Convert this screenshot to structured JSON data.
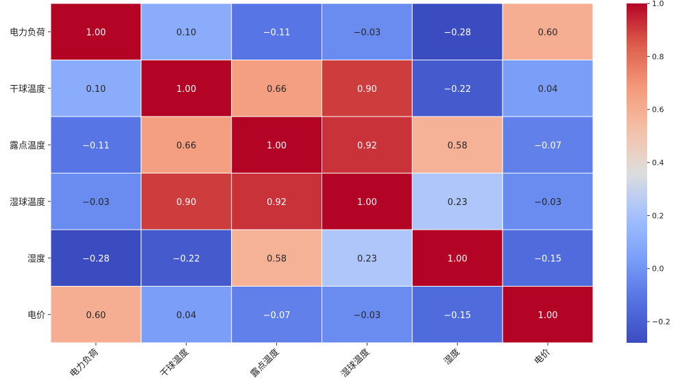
{
  "chart_data": {
    "type": "heatmap",
    "title": "",
    "labels": [
      "电力负荷",
      "干球温度",
      "露点温度",
      "湿球温度",
      "湿度",
      "电价"
    ],
    "matrix": [
      [
        1.0,
        0.1,
        -0.11,
        -0.03,
        -0.28,
        0.6
      ],
      [
        0.1,
        1.0,
        0.66,
        0.9,
        -0.22,
        0.04
      ],
      [
        -0.11,
        0.66,
        1.0,
        0.92,
        0.58,
        -0.07
      ],
      [
        -0.03,
        0.9,
        0.92,
        1.0,
        0.23,
        -0.03
      ],
      [
        -0.28,
        -0.22,
        0.58,
        0.23,
        1.0,
        -0.15
      ],
      [
        0.6,
        0.04,
        -0.07,
        -0.03,
        -0.15,
        1.0
      ]
    ],
    "colormap": "coolwarm",
    "vmin": -0.28,
    "vmax": 1.0,
    "annotation_format": "0.00",
    "colorbar": {
      "ticks": [
        1.0,
        0.8,
        0.6,
        0.4,
        0.2,
        0.0,
        -0.2
      ],
      "tick_labels": [
        "1.0",
        "0.8",
        "0.6",
        "0.4",
        "0.2",
        "0.0",
        "-0.2"
      ],
      "placement": "right"
    }
  }
}
